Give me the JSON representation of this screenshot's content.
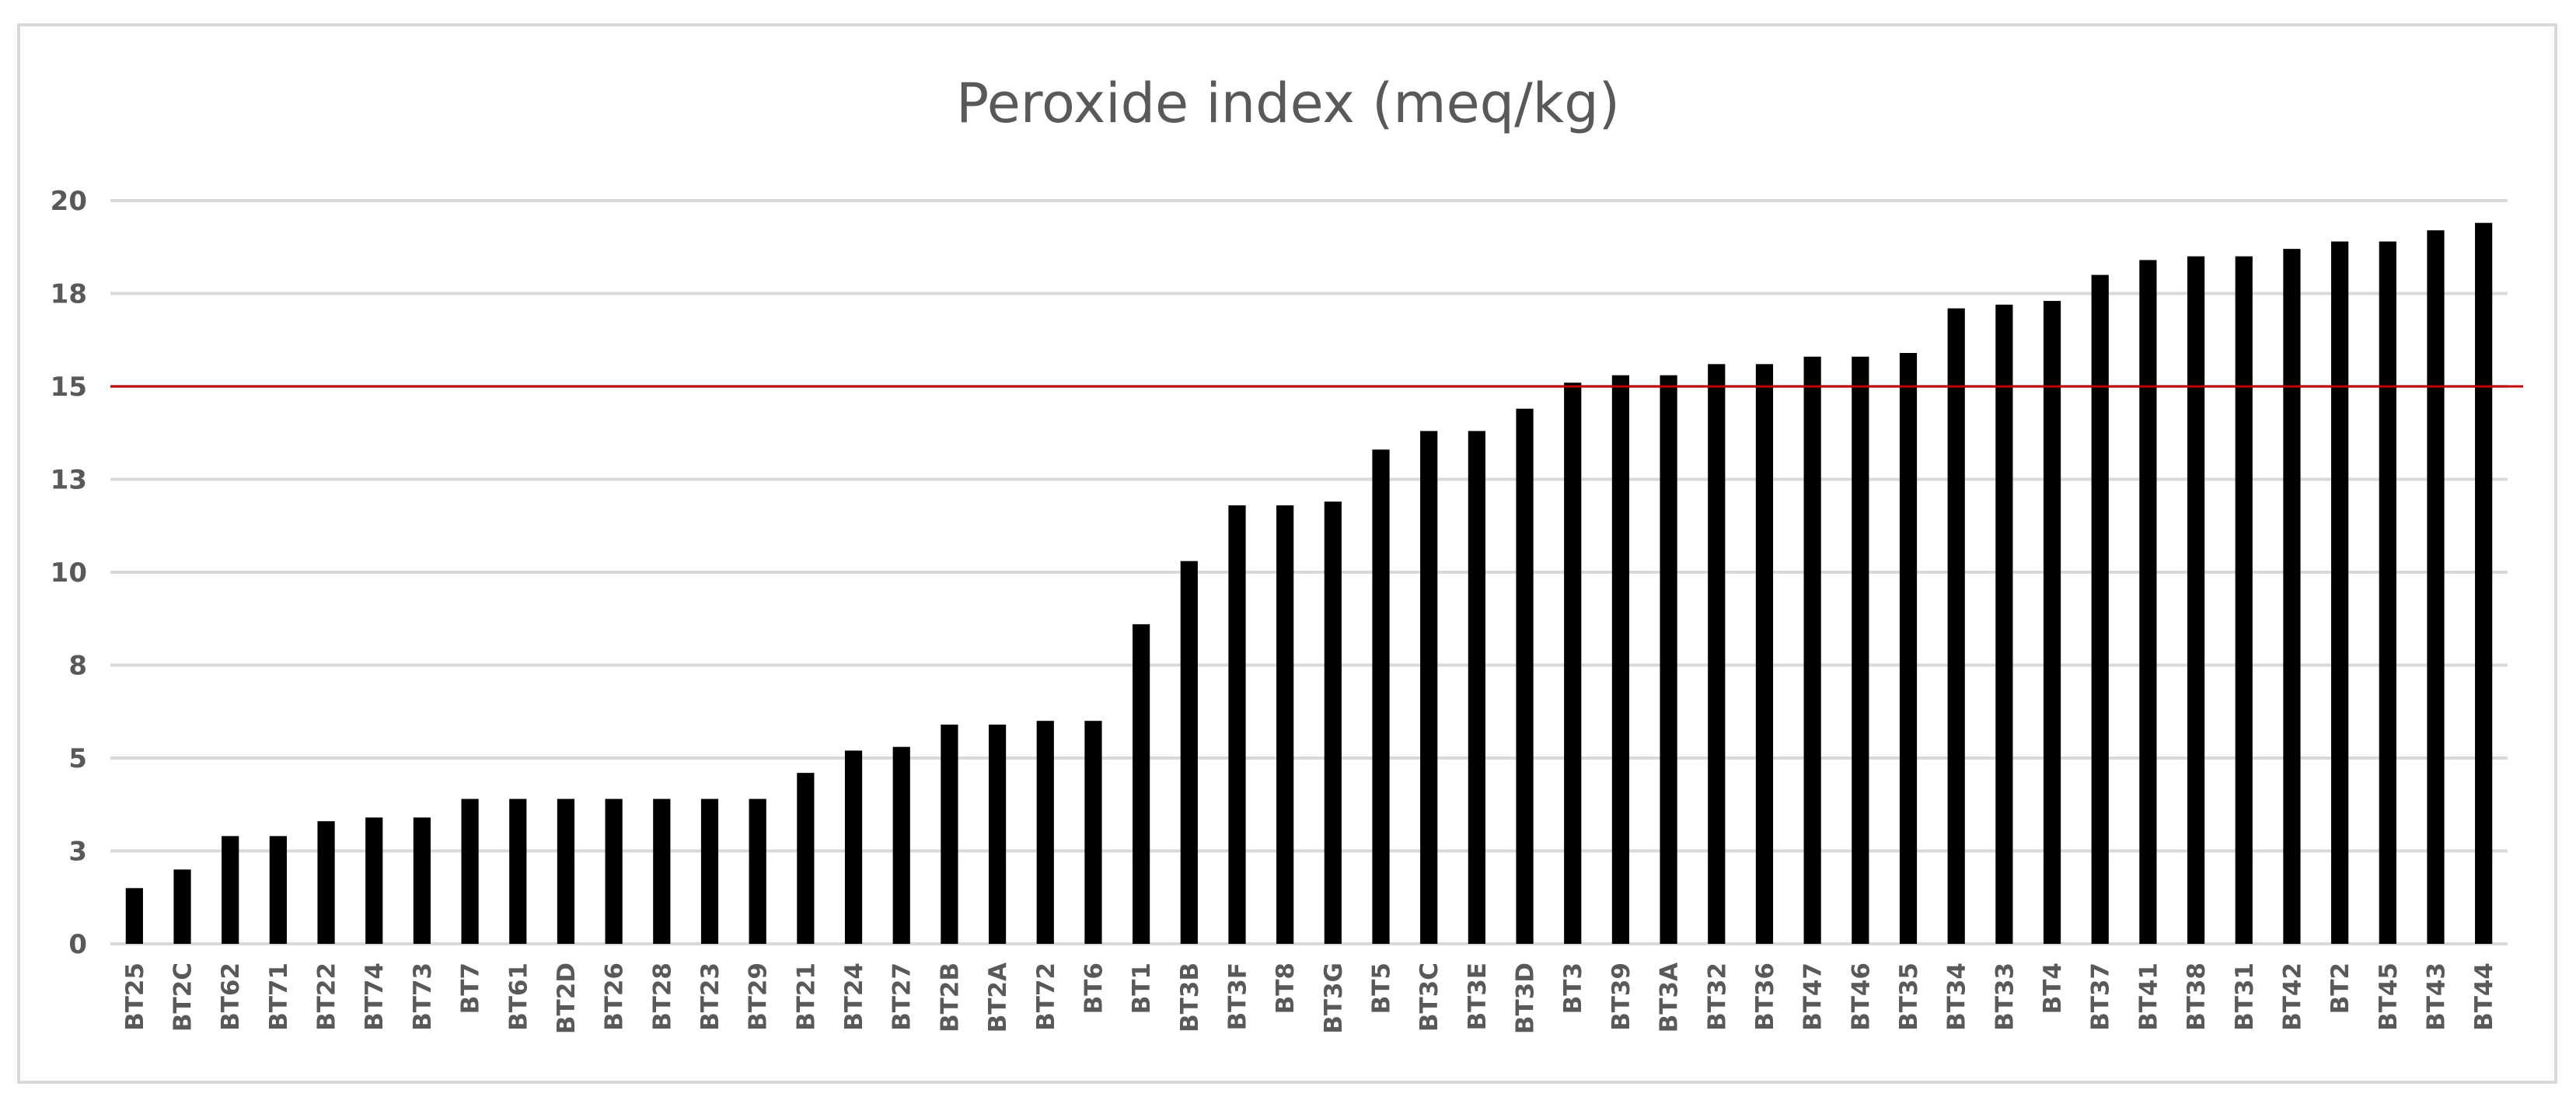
{
  "chart_data": {
    "type": "bar",
    "title": "Peroxide index (meq/kg)",
    "xlabel": "",
    "ylabel": "",
    "ylim": [
      0,
      20
    ],
    "y_tick_labels": [
      "0",
      "3",
      "5",
      "8",
      "10",
      "13",
      "15",
      "18",
      "20"
    ],
    "grid": true,
    "legend": "none",
    "colors": {
      "bar": "#000000",
      "threshold_line": "#c00000",
      "grid": "#d9d9d9",
      "text": "#595959"
    },
    "reference_line": {
      "value": 15
    },
    "categories": [
      "BT25",
      "BT2C",
      "BT62",
      "BT71",
      "BT22",
      "BT74",
      "BT73",
      "BT7",
      "BT61",
      "BT2D",
      "BT26",
      "BT28",
      "BT23",
      "BT29",
      "BT21",
      "BT24",
      "BT27",
      "BT2B",
      "BT2A",
      "BT72",
      "BT6",
      "BT1",
      "BT3B",
      "BT3F",
      "BT8",
      "BT3G",
      "BT5",
      "BT3C",
      "BT3E",
      "BT3D",
      "BT3",
      "BT39",
      "BT3A",
      "BT32",
      "BT36",
      "BT47",
      "BT46",
      "BT35",
      "BT34",
      "BT33",
      "BT4",
      "BT37",
      "BT41",
      "BT38",
      "BT31",
      "BT42",
      "BT2",
      "BT45",
      "BT43",
      "BT44"
    ],
    "values": [
      1.5,
      2.0,
      2.9,
      2.9,
      3.3,
      3.4,
      3.4,
      3.9,
      3.9,
      3.9,
      3.9,
      3.9,
      3.9,
      3.9,
      4.6,
      5.2,
      5.3,
      5.9,
      5.9,
      6.0,
      6.0,
      8.6,
      10.3,
      11.8,
      11.8,
      11.9,
      13.3,
      13.8,
      13.8,
      14.4,
      15.1,
      15.3,
      15.3,
      15.6,
      15.6,
      15.8,
      15.8,
      15.9,
      17.1,
      17.2,
      17.3,
      18.0,
      18.4,
      18.5,
      18.5,
      18.7,
      18.9,
      18.9,
      19.2,
      19.4
    ]
  }
}
